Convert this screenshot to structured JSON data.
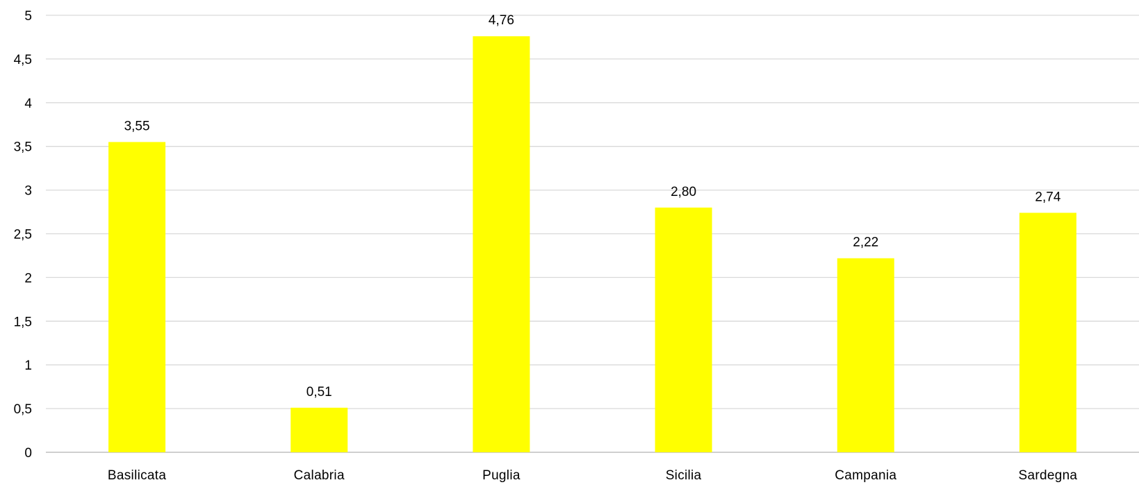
{
  "chart_data": {
    "type": "bar",
    "categories": [
      "Basilicata",
      "Calabria",
      "Puglia",
      "Sicilia",
      "Campania",
      "Sardegna"
    ],
    "values": [
      3.55,
      0.51,
      4.76,
      2.8,
      2.22,
      2.74
    ],
    "data_labels": [
      "3,55",
      "0,51",
      "4,76",
      "2,80",
      "2,22",
      "2,74"
    ],
    "ylim": [
      0,
      5
    ],
    "y_ticks": [
      0,
      0.5,
      1,
      1.5,
      2,
      2.5,
      3,
      3.5,
      4,
      4.5,
      5
    ],
    "y_tick_labels": [
      "0",
      "0,5",
      "1",
      "1,5",
      "2",
      "2,5",
      "3",
      "3,5",
      "4",
      "4,5",
      "5"
    ],
    "title": "",
    "xlabel": "",
    "ylabel": "",
    "grid": true,
    "legend": "none",
    "colors": {
      "bar": "#FFFF00",
      "grid": "#D9D9D9",
      "axis": "#BFBFBF",
      "tick_text": "#404040",
      "label_text": "#000000"
    }
  }
}
